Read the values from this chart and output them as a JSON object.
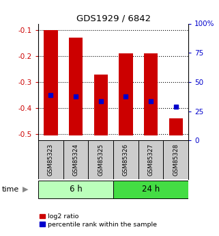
{
  "title": "GDS1929 / 6842",
  "samples": [
    "GSM85323",
    "GSM85324",
    "GSM85325",
    "GSM85326",
    "GSM85327",
    "GSM85328"
  ],
  "bar_top": [
    -0.1,
    -0.13,
    -0.27,
    -0.19,
    -0.19,
    -0.44
  ],
  "bar_bottom": [
    -0.505,
    -0.505,
    -0.505,
    -0.505,
    -0.505,
    -0.505
  ],
  "blue_dot_y": [
    -0.35,
    -0.355,
    -0.375,
    -0.355,
    -0.375,
    -0.395
  ],
  "bar_color": "#cc0000",
  "dot_color": "#0000cc",
  "ylim_left": [
    -0.525,
    -0.075
  ],
  "ylim_right": [
    0,
    100
  ],
  "yticks_left": [
    -0.5,
    -0.4,
    -0.3,
    -0.2,
    -0.1
  ],
  "yticks_right": [
    0,
    25,
    50,
    75,
    100
  ],
  "ytick_labels_right": [
    "0",
    "25",
    "50",
    "75",
    "100%"
  ],
  "group1_label": "6 h",
  "group2_label": "24 h",
  "group1_indices": [
    0,
    1,
    2
  ],
  "group2_indices": [
    3,
    4,
    5
  ],
  "group1_color": "#bbffbb",
  "group2_color": "#44dd44",
  "time_label": "time",
  "legend1": "log2 ratio",
  "legend2": "percentile rank within the sample",
  "bar_width": 0.55,
  "background_color": "#ffffff"
}
